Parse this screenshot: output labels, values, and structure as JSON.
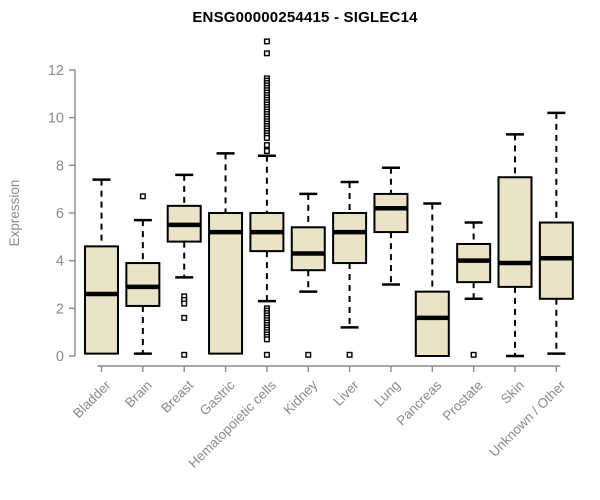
{
  "title": "ENSG00000254415 - SIGLEC14",
  "colors": {
    "box_fill": "#E9E3C7",
    "box_stroke": "#000000",
    "median": "#000000",
    "outlier_fill": "#FFFFFF",
    "axis": "#8A8A8A",
    "tick_label": "#8A8A8A",
    "title": "#000000",
    "background": "#FFFFFF"
  },
  "chart_data": {
    "type": "boxplot",
    "title": "ENSG00000254415 - SIGLEC14",
    "xlabel": "",
    "ylabel": "Expression",
    "ylim": [
      0,
      12
    ],
    "yticks": [
      0,
      2,
      4,
      6,
      8,
      10,
      12
    ],
    "grid": false,
    "legend": "none",
    "categories": [
      "Bladder",
      "Brain",
      "Breast",
      "Gastric",
      "Hematopoietic cells",
      "Kidney",
      "Liver",
      "Lung",
      "Pancreas",
      "Prostate",
      "Skin",
      "Unknown / Other"
    ],
    "boxes": [
      {
        "label": "Bladder",
        "whislo": 0.1,
        "q1": 0.1,
        "med": 2.6,
        "q3": 4.6,
        "whishi": 7.4,
        "outliers": []
      },
      {
        "label": "Brain",
        "whislo": 0.1,
        "q1": 2.1,
        "med": 2.9,
        "q3": 3.9,
        "whishi": 5.7,
        "outliers": [
          6.7
        ]
      },
      {
        "label": "Breast",
        "whislo": 3.3,
        "q1": 4.8,
        "med": 5.5,
        "q3": 6.3,
        "whishi": 7.6,
        "outliers": [
          2.5,
          2.35,
          2.2,
          1.6,
          0.05
        ]
      },
      {
        "label": "Gastric",
        "whislo": 0.1,
        "q1": 0.1,
        "med": 5.2,
        "q3": 6.0,
        "whishi": 8.5,
        "outliers": []
      },
      {
        "label": "Hematopoietic cells",
        "whislo": 2.3,
        "q1": 4.4,
        "med": 5.2,
        "q3": 6.0,
        "whishi": 8.4,
        "outliers": [
          13.2,
          12.7,
          11.65,
          11.55,
          11.45,
          11.35,
          11.25,
          11.15,
          11.05,
          10.95,
          10.85,
          10.75,
          10.65,
          10.55,
          10.45,
          10.35,
          10.25,
          10.15,
          10.05,
          9.95,
          9.85,
          9.75,
          9.65,
          9.55,
          9.45,
          9.35,
          9.25,
          9.15,
          8.85,
          8.6,
          2.0,
          1.9,
          1.8,
          1.7,
          1.6,
          1.5,
          1.4,
          1.3,
          1.2,
          1.1,
          1.0,
          0.9,
          0.8,
          0.7,
          0.05
        ]
      },
      {
        "label": "Kidney",
        "whislo": 2.7,
        "q1": 3.6,
        "med": 4.3,
        "q3": 5.4,
        "whishi": 6.8,
        "outliers": [
          0.05
        ]
      },
      {
        "label": "Liver",
        "whislo": 1.2,
        "q1": 3.9,
        "med": 5.2,
        "q3": 6.0,
        "whishi": 7.3,
        "outliers": [
          0.05
        ]
      },
      {
        "label": "Lung",
        "whislo": 3.0,
        "q1": 5.2,
        "med": 6.2,
        "q3": 6.8,
        "whishi": 7.9,
        "outliers": []
      },
      {
        "label": "Pancreas",
        "whislo": 0.0,
        "q1": 0.0,
        "med": 1.6,
        "q3": 2.7,
        "whishi": 6.4,
        "outliers": []
      },
      {
        "label": "Prostate",
        "whislo": 2.4,
        "q1": 3.1,
        "med": 4.0,
        "q3": 4.7,
        "whishi": 5.6,
        "outliers": [
          0.05
        ]
      },
      {
        "label": "Skin",
        "whislo": 0.0,
        "q1": 2.9,
        "med": 3.9,
        "q3": 7.5,
        "whishi": 9.3,
        "outliers": []
      },
      {
        "label": "Unknown / Other",
        "whislo": 0.1,
        "q1": 2.4,
        "med": 4.1,
        "q3": 5.6,
        "whishi": 10.2,
        "outliers": []
      }
    ]
  }
}
